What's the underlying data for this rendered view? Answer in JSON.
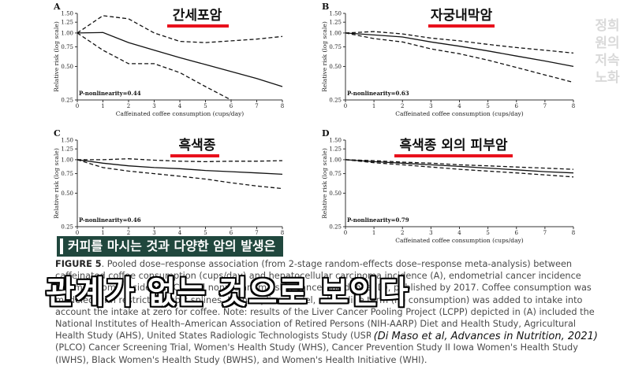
{
  "chart_data": [
    {
      "type": "line",
      "panel_letter": "A",
      "korean_title": "간세포암",
      "ylabel": "Relative risk (log scale)",
      "xlabel": "Caffeinated coffee consumption (cups/day)",
      "y_scale": "log",
      "y_ticks": [
        "1.50",
        "1.25",
        "1.00",
        "0.75",
        "0.50",
        "0.25"
      ],
      "x_ticks": [
        "0",
        "1",
        "2",
        "3",
        "4",
        "5",
        "6",
        "7",
        "8"
      ],
      "annotation": "P-nonlinearity=0.44",
      "series": [
        {
          "style": "solid",
          "x": [
            0,
            1,
            2,
            3,
            4,
            5,
            6,
            7,
            8
          ],
          "y": [
            1.0,
            1.01,
            0.82,
            0.7,
            0.6,
            0.52,
            0.45,
            0.39,
            0.33
          ]
        },
        {
          "style": "dashed",
          "x": [
            0,
            1,
            2,
            3,
            4,
            5,
            6,
            7,
            8
          ],
          "y": [
            1.0,
            1.43,
            1.34,
            1.0,
            0.84,
            0.82,
            0.85,
            0.88,
            0.93
          ]
        },
        {
          "style": "dashed",
          "x": [
            0,
            1,
            2,
            3,
            4,
            5,
            6,
            7,
            8
          ],
          "y": [
            1.0,
            0.7,
            0.53,
            0.53,
            0.44,
            0.33,
            0.25,
            0.19,
            0.14
          ]
        }
      ]
    },
    {
      "type": "line",
      "panel_letter": "B",
      "korean_title": "자궁내막암",
      "ylabel": "Relative risk (log scale)",
      "xlabel": "Caffeinated coffee consumption (cups/day)",
      "y_scale": "log",
      "y_ticks": [
        "1.50",
        "1.25",
        "1.00",
        "0.75",
        "0.50",
        "0.25"
      ],
      "x_ticks": [
        "0",
        "1",
        "2",
        "3",
        "4",
        "5",
        "6",
        "7",
        "8"
      ],
      "annotation": "P-nonlinearity=0.63",
      "series": [
        {
          "style": "solid",
          "x": [
            0,
            1,
            2,
            3,
            4,
            5,
            6,
            7,
            8
          ],
          "y": [
            1.0,
            0.96,
            0.92,
            0.83,
            0.76,
            0.69,
            0.62,
            0.56,
            0.5
          ]
        },
        {
          "style": "dashed",
          "x": [
            0,
            1,
            2,
            3,
            4,
            5,
            6,
            7,
            8
          ],
          "y": [
            1.0,
            1.03,
            0.98,
            0.9,
            0.85,
            0.79,
            0.74,
            0.7,
            0.66
          ]
        },
        {
          "style": "dashed",
          "x": [
            0,
            1,
            2,
            3,
            4,
            5,
            6,
            7,
            8
          ],
          "y": [
            1.0,
            0.89,
            0.83,
            0.72,
            0.65,
            0.57,
            0.49,
            0.42,
            0.36
          ]
        }
      ]
    },
    {
      "type": "line",
      "panel_letter": "C",
      "korean_title": "흑색종",
      "ylabel": "Relative risk (log scale)",
      "xlabel": "Caffeinated coffee consumption (cups/day)",
      "y_scale": "log",
      "y_ticks": [
        "1.50",
        "1.25",
        "1.00",
        "0.75",
        "0.50",
        "0.25"
      ],
      "x_ticks": [
        "0",
        "1",
        "2",
        "3",
        "4",
        "5",
        "6",
        "7",
        "8"
      ],
      "annotation": "P-nonlinearity=0.46",
      "series": [
        {
          "style": "solid",
          "x": [
            0,
            1,
            2,
            3,
            4,
            5,
            6,
            7,
            8
          ],
          "y": [
            1.0,
            0.93,
            0.88,
            0.85,
            0.83,
            0.8,
            0.78,
            0.76,
            0.74
          ]
        },
        {
          "style": "dashed",
          "x": [
            0,
            1,
            2,
            3,
            4,
            5,
            6,
            7,
            8
          ],
          "y": [
            1.0,
            1.0,
            1.02,
            0.99,
            0.97,
            0.96,
            0.97,
            0.97,
            0.98
          ]
        },
        {
          "style": "dashed",
          "x": [
            0,
            1,
            2,
            3,
            4,
            5,
            6,
            7,
            8
          ],
          "y": [
            1.0,
            0.85,
            0.79,
            0.75,
            0.71,
            0.67,
            0.62,
            0.58,
            0.55
          ]
        }
      ]
    },
    {
      "type": "line",
      "panel_letter": "D",
      "korean_title": "흑색종 외의 피부암",
      "ylabel": "Relative risk (log scale)",
      "xlabel": "Caffeinated coffee consumption (cups/day)",
      "y_scale": "log",
      "y_ticks": [
        "1.50",
        "1.25",
        "1.00",
        "0.75",
        "0.50",
        "0.25"
      ],
      "x_ticks": [
        "0",
        "1",
        "2",
        "3",
        "4",
        "5",
        "6",
        "7",
        "8"
      ],
      "annotation": "P-nonlinearity=0.79",
      "series": [
        {
          "style": "solid",
          "x": [
            0,
            1,
            2,
            3,
            4,
            5,
            6,
            7,
            8
          ],
          "y": [
            1.0,
            0.96,
            0.93,
            0.9,
            0.87,
            0.84,
            0.81,
            0.78,
            0.76
          ]
        },
        {
          "style": "dashed",
          "x": [
            0,
            1,
            2,
            3,
            4,
            5,
            6,
            7,
            8
          ],
          "y": [
            1.0,
            0.98,
            0.95,
            0.93,
            0.9,
            0.88,
            0.86,
            0.84,
            0.82
          ]
        },
        {
          "style": "dashed",
          "x": [
            0,
            1,
            2,
            3,
            4,
            5,
            6,
            7,
            8
          ],
          "y": [
            1.0,
            0.94,
            0.9,
            0.86,
            0.82,
            0.79,
            0.76,
            0.73,
            0.7
          ]
        }
      ]
    }
  ],
  "caption": {
    "label": "FIGURE 5",
    "line1": "Pooled dose–response association (from 2-stage random-effects dose–response meta-analysis) between caffeinated coffee",
    "line2": "consumption (cups/day) and hepatocellular carcinoma incidence (A), endometrial cancer incidence (B), melanoma incidence (C), and",
    "line3": "nonmelanoma skin cancer incidence (D), published by 2017. Coffee consumption was modeled with restricted cubic splines. In the",
    "line4": "spline model, a baseline term (no consumption) was added to intake into account the intake at zero for coffee. Note: results of the",
    "line5": "Liver Cancer Pooling Project (LCPP) depicted in (A) included the National Institutes of Health–American Association of Retired Persons",
    "line6": "(NIH-AARP) Diet and Health Study, Agricultural Health Study (AHS), United States Radiologic Technologists Study (USRTS), Prostate, Lung,",
    "line7": "Colorectal, and Ovarian (PLCO) Cancer Screening Trial, Women's Health Study (WHS), Cancer Prevention Study II",
    "line8": "Iowa Women's Health Study (IWHS), Black Women's Health Study (BWHS), and Women's Health Initiative (WHI)."
  },
  "banner_text": "커피를 마시는 것과 다양한 암의 발생은",
  "big_subtitle": "관계가 없는 것으로 보인다",
  "citation": "(Di Maso et al, Advances in Nutrition, 2021)",
  "watermark": [
    "정희원의",
    "저속노화"
  ]
}
